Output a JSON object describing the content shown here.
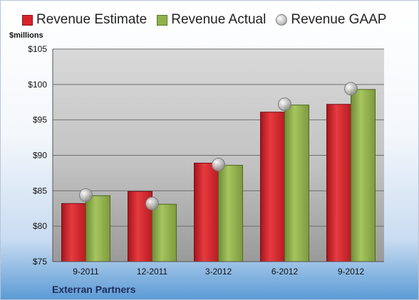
{
  "colors": {
    "estimate": "#d6232b",
    "actual": "#8fb34a",
    "gaap": "#b0b0b0"
  },
  "footer": {
    "company": "Exterran Partners"
  },
  "chart_data": {
    "type": "bar",
    "ylabel": "$millions",
    "ylim": [
      75,
      105
    ],
    "yticks": [
      75,
      80,
      85,
      90,
      95,
      100,
      105
    ],
    "ytick_labels": [
      "$75",
      "$80",
      "$85",
      "$90",
      "$95",
      "$100",
      "$105"
    ],
    "grid": true,
    "legend_position": "top",
    "categories": [
      "9-2011",
      "12-2011",
      "3-2012",
      "6-2012",
      "9-2012"
    ],
    "series": [
      {
        "name": "Revenue Estimate",
        "kind": "bar",
        "values": [
          83.2,
          84.9,
          88.9,
          96.1,
          97.2
        ]
      },
      {
        "name": "Revenue Actual",
        "kind": "bar",
        "values": [
          84.3,
          83.1,
          88.6,
          97.1,
          99.3
        ]
      },
      {
        "name": "Revenue GAAP",
        "kind": "marker",
        "values": [
          84.4,
          83.2,
          88.7,
          97.2,
          99.4
        ]
      }
    ]
  }
}
